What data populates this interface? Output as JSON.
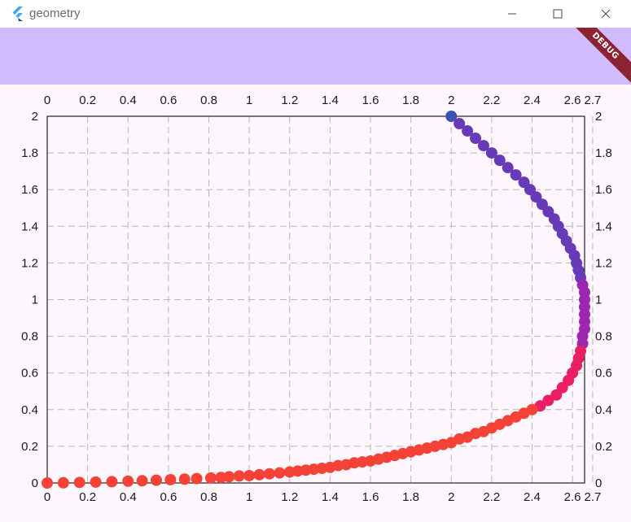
{
  "window": {
    "title": "geometry",
    "minimize_icon": "minimize-icon",
    "maximize_icon": "maximize-icon",
    "close_icon": "close-icon"
  },
  "debug_banner": "DEBUG",
  "colors": {
    "background": "#fdf6fd",
    "appbar": "#d0bcfd",
    "grid": "#b8b8b8",
    "c_blue": "#3f51b5",
    "c_deep_purple": "#673ab7",
    "c_purple": "#9c27b0",
    "c_pink": "#e91e63",
    "c_red": "#f44336"
  },
  "chart_data": {
    "type": "scatter",
    "title": "",
    "xlabel": "",
    "ylabel": "",
    "xlim": [
      0,
      2.66
    ],
    "ylim": [
      0,
      2
    ],
    "x_ticks": [
      "0",
      "0.2",
      "0.4",
      "0.6",
      "0.8",
      "1",
      "1.2",
      "1.4",
      "1.6",
      "1.8",
      "2",
      "2.2",
      "2.4",
      "2.6",
      "2.7"
    ],
    "y_ticks": [
      "0",
      "0.2",
      "0.4",
      "0.6",
      "0.8",
      "1",
      "1.2",
      "1.4",
      "1.6",
      "1.8",
      "2"
    ],
    "grid": true,
    "axes_on_all_sides": true,
    "series": [
      {
        "color": "#3f51b5",
        "points": [
          [
            2.0,
            2.0
          ]
        ]
      },
      {
        "color": "#673ab7",
        "points": [
          [
            2.04,
            1.96
          ],
          [
            2.08,
            1.92
          ],
          [
            2.12,
            1.88
          ],
          [
            2.16,
            1.84
          ],
          [
            2.2,
            1.8
          ],
          [
            2.24,
            1.76
          ],
          [
            2.28,
            1.72
          ],
          [
            2.32,
            1.68
          ],
          [
            2.36,
            1.64
          ],
          [
            2.39,
            1.6
          ],
          [
            2.42,
            1.56
          ],
          [
            2.45,
            1.52
          ],
          [
            2.48,
            1.48
          ],
          [
            2.51,
            1.44
          ],
          [
            2.53,
            1.4
          ],
          [
            2.55,
            1.36
          ],
          [
            2.57,
            1.32
          ],
          [
            2.59,
            1.28
          ],
          [
            2.61,
            1.24
          ],
          [
            2.62,
            1.2
          ],
          [
            2.63,
            1.16
          ],
          [
            2.64,
            1.12
          ]
        ]
      },
      {
        "color": "#9c27b0",
        "points": [
          [
            2.65,
            1.08
          ],
          [
            2.66,
            1.04
          ],
          [
            2.66,
            1.0
          ],
          [
            2.66,
            0.96
          ],
          [
            2.66,
            0.92
          ],
          [
            2.66,
            0.88
          ],
          [
            2.66,
            0.84
          ],
          [
            2.65,
            0.8
          ],
          [
            2.65,
            0.76
          ]
        ]
      },
      {
        "color": "#e91e63",
        "points": [
          [
            2.64,
            0.72
          ],
          [
            2.63,
            0.68
          ],
          [
            2.62,
            0.64
          ],
          [
            2.6,
            0.6
          ],
          [
            2.58,
            0.56
          ],
          [
            2.55,
            0.52
          ],
          [
            2.52,
            0.48
          ],
          [
            2.48,
            0.45
          ],
          [
            2.44,
            0.42
          ]
        ]
      },
      {
        "color": "#f44336",
        "points": [
          [
            2.4,
            0.4
          ],
          [
            2.36,
            0.38
          ],
          [
            2.32,
            0.36
          ],
          [
            2.28,
            0.34
          ],
          [
            2.24,
            0.32
          ],
          [
            2.2,
            0.3
          ],
          [
            2.16,
            0.28
          ],
          [
            2.12,
            0.27
          ],
          [
            2.08,
            0.25
          ],
          [
            2.04,
            0.24
          ],
          [
            2.0,
            0.22
          ],
          [
            1.96,
            0.21
          ],
          [
            1.92,
            0.2
          ],
          [
            1.88,
            0.19
          ],
          [
            1.84,
            0.18
          ],
          [
            1.8,
            0.17
          ],
          [
            1.76,
            0.16
          ],
          [
            1.72,
            0.15
          ],
          [
            1.68,
            0.14
          ],
          [
            1.64,
            0.13
          ],
          [
            1.6,
            0.12
          ],
          [
            1.56,
            0.115
          ],
          [
            1.52,
            0.11
          ],
          [
            1.48,
            0.1
          ],
          [
            1.44,
            0.095
          ],
          [
            1.4,
            0.085
          ],
          [
            1.36,
            0.08
          ],
          [
            1.32,
            0.075
          ],
          [
            1.28,
            0.07
          ],
          [
            1.24,
            0.065
          ],
          [
            1.2,
            0.06
          ],
          [
            1.15,
            0.055
          ],
          [
            1.1,
            0.05
          ],
          [
            1.05,
            0.045
          ],
          [
            1.0,
            0.04
          ],
          [
            0.95,
            0.038
          ],
          [
            0.9,
            0.034
          ],
          [
            0.86,
            0.03
          ],
          [
            0.81,
            0.027
          ],
          [
            0.74,
            0.024
          ],
          [
            0.68,
            0.021
          ],
          [
            0.61,
            0.018
          ],
          [
            0.54,
            0.015
          ],
          [
            0.47,
            0.012
          ],
          [
            0.4,
            0.01
          ],
          [
            0.32,
            0.007
          ],
          [
            0.24,
            0.005
          ],
          [
            0.16,
            0.003
          ],
          [
            0.08,
            0.001
          ],
          [
            0.0,
            0.0
          ]
        ]
      }
    ]
  }
}
